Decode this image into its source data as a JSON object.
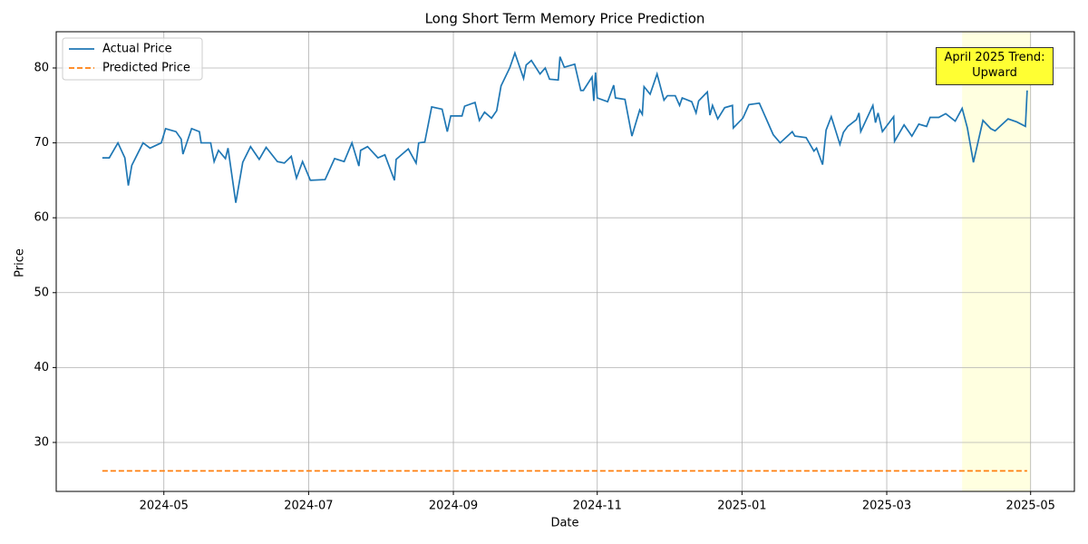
{
  "chart_data": {
    "type": "line",
    "title": "Long Short Term Memory Price Prediction",
    "x_label": "Date",
    "y_label": "Price",
    "xlim": [
      2024.2088,
      2025.3835
    ],
    "ylim": [
      23.46,
      84.84
    ],
    "xticks": [
      {
        "value": 2024.333,
        "label": "2024-05"
      },
      {
        "value": 2024.5,
        "label": "2024-07"
      },
      {
        "value": 2024.667,
        "label": "2024-09"
      },
      {
        "value": 2024.833,
        "label": "2024-11"
      },
      {
        "value": 2025.0,
        "label": "2025-01"
      },
      {
        "value": 2025.167,
        "label": "2025-03"
      },
      {
        "value": 2025.333,
        "label": "2025-05"
      }
    ],
    "yticks": [
      30,
      40,
      50,
      60,
      70,
      80
    ],
    "grid": true,
    "legend": "upper left",
    "highlight": {
      "xlim": [
        2025.254,
        2025.333
      ],
      "color": "#ffffe0"
    },
    "annotation": {
      "text": "April 2025 Trend:\nUpward"
    },
    "series": [
      {
        "name": "Actual Price",
        "color": "#1f77b4",
        "dash": false,
        "x": [
          2024.262,
          2024.27,
          2024.28,
          2024.288,
          2024.292,
          2024.296,
          2024.309,
          2024.317,
          2024.33,
          2024.335,
          2024.347,
          2024.353,
          2024.355,
          2024.365,
          2024.374,
          2024.376,
          2024.387,
          2024.391,
          2024.396,
          2024.404,
          2024.407,
          2024.416,
          2024.424,
          2024.433,
          2024.443,
          2024.451,
          2024.464,
          2024.472,
          2024.48,
          2024.486,
          2024.493,
          2024.502,
          2024.519,
          2024.53,
          2024.541,
          2024.55,
          2024.558,
          2024.56,
          2024.568,
          2024.58,
          2024.588,
          2024.599,
          2024.601,
          2024.615,
          2024.624,
          2024.627,
          2024.634,
          2024.642,
          2024.654,
          2024.66,
          2024.664,
          2024.677,
          2024.68,
          2024.692,
          2024.697,
          2024.703,
          2024.711,
          2024.717,
          2024.722,
          2024.732,
          2024.738,
          2024.748,
          2024.751,
          2024.757,
          2024.767,
          2024.773,
          2024.778,
          2024.788,
          2024.79,
          2024.795,
          2024.807,
          2024.814,
          2024.817,
          2024.827,
          2024.829,
          2024.831,
          2024.833,
          2024.845,
          2024.852,
          2024.854,
          2024.865,
          2024.873,
          2024.882,
          2024.885,
          2024.887,
          2024.894,
          2024.902,
          2024.91,
          2024.914,
          2024.923,
          2024.928,
          2024.931,
          2024.942,
          2024.947,
          2024.95,
          2024.96,
          2024.963,
          2024.966,
          2024.972,
          2024.98,
          2024.989,
          2024.99,
          2025.001,
          2025.008,
          2025.02,
          2025.028,
          2025.036,
          2025.044,
          2025.058,
          2025.061,
          2025.074,
          2025.083,
          2025.086,
          2025.093,
          2025.097,
          2025.103,
          2025.113,
          2025.117,
          2025.122,
          2025.132,
          2025.135,
          2025.137,
          2025.151,
          2025.154,
          2025.157,
          2025.162,
          2025.175,
          2025.176,
          2025.187,
          2025.196,
          2025.204,
          2025.213,
          2025.217,
          2025.227,
          2025.235,
          2025.246,
          2025.254,
          2025.26,
          2025.267,
          2025.278,
          2025.287,
          2025.292,
          2025.307,
          2025.317,
          2025.327,
          2025.329
        ],
        "values": [
          68,
          68,
          70,
          68,
          64.3,
          67,
          70,
          69.3,
          70,
          71.9,
          71.5,
          70.5,
          68.5,
          71.9,
          71.5,
          70,
          70,
          67.5,
          69,
          67.9,
          69.3,
          62,
          67.4,
          69.5,
          67.8,
          69.4,
          67.5,
          67.3,
          68.2,
          65.3,
          67.5,
          65,
          65.1,
          67.9,
          67.5,
          70,
          66.9,
          69,
          69.5,
          68,
          68.4,
          65,
          67.8,
          69.2,
          67.3,
          70,
          70.1,
          74.8,
          74.5,
          71.5,
          73.6,
          73.6,
          74.9,
          75.4,
          73,
          74.1,
          73.3,
          74.3,
          77.6,
          80,
          82,
          78.6,
          80.4,
          81,
          79.2,
          80,
          78.5,
          78.4,
          81.5,
          80.1,
          80.5,
          77,
          77,
          78.8,
          75.6,
          79.4,
          76,
          75.5,
          77.7,
          76,
          75.8,
          70.9,
          74.4,
          73.8,
          77.5,
          76.5,
          79.2,
          75.7,
          76.3,
          76.3,
          75,
          76,
          75.5,
          74,
          75.6,
          76.8,
          73.7,
          75,
          73.2,
          74.7,
          75,
          72,
          73.3,
          75.1,
          75.3,
          73.2,
          71.1,
          70,
          71.5,
          70.9,
          70.7,
          68.9,
          69.3,
          67.1,
          71.7,
          73.5,
          69.8,
          71.4,
          72.2,
          73.1,
          74,
          71.5,
          75,
          72.7,
          74,
          71.5,
          73.5,
          70.2,
          72.4,
          70.9,
          72.5,
          72.2,
          73.4,
          73.4,
          73.9,
          72.9,
          74.6,
          72,
          67.4,
          73,
          71.9,
          71.6,
          73.2,
          72.8,
          72.2,
          77
        ]
      },
      {
        "name": "Predicted Price",
        "color": "#ff7f0e",
        "dash": true,
        "x": [
          2024.262,
          2025.329
        ],
        "values": [
          26.2,
          26.2
        ]
      }
    ]
  }
}
